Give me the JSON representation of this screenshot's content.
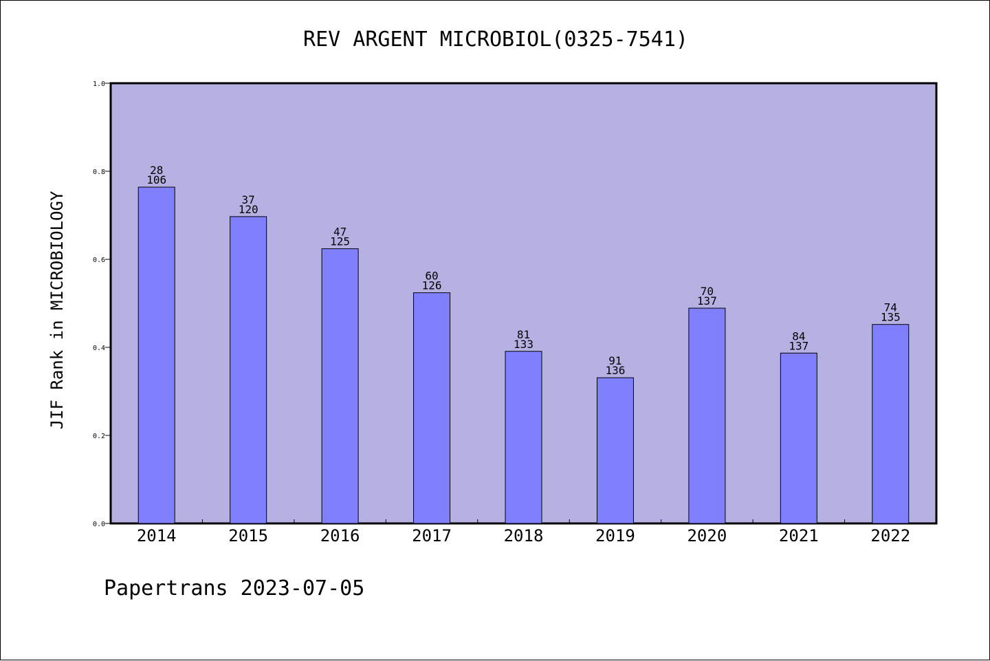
{
  "chart_data": {
    "type": "bar",
    "title": "REV ARGENT MICROBIOL(0325-7541)",
    "ylabel": "JIF Rank in MICROBIOLOGY",
    "xlabel": "",
    "ylim": [
      0,
      1.0
    ],
    "yticks": [
      "0.0",
      "0.2",
      "0.4",
      "0.6",
      "0.8",
      "1.0"
    ],
    "categories": [
      "2014",
      "2015",
      "2016",
      "2017",
      "2018",
      "2019",
      "2020",
      "2021",
      "2022"
    ],
    "values": [
      0.764,
      0.697,
      0.624,
      0.524,
      0.391,
      0.331,
      0.489,
      0.387,
      0.452
    ],
    "rank": [
      "28",
      "37",
      "47",
      "60",
      "81",
      "91",
      "70",
      "84",
      "74"
    ],
    "total": [
      "106",
      "120",
      "125",
      "126",
      "133",
      "136",
      "137",
      "137",
      "135"
    ],
    "grid": false,
    "legend": "none",
    "colors": {
      "plot_background": "#b6b1e3",
      "bar_fill": "#8080ff",
      "bar_stroke": "#000000"
    }
  },
  "footer": {
    "text": "Papertrans 2023-07-05"
  }
}
